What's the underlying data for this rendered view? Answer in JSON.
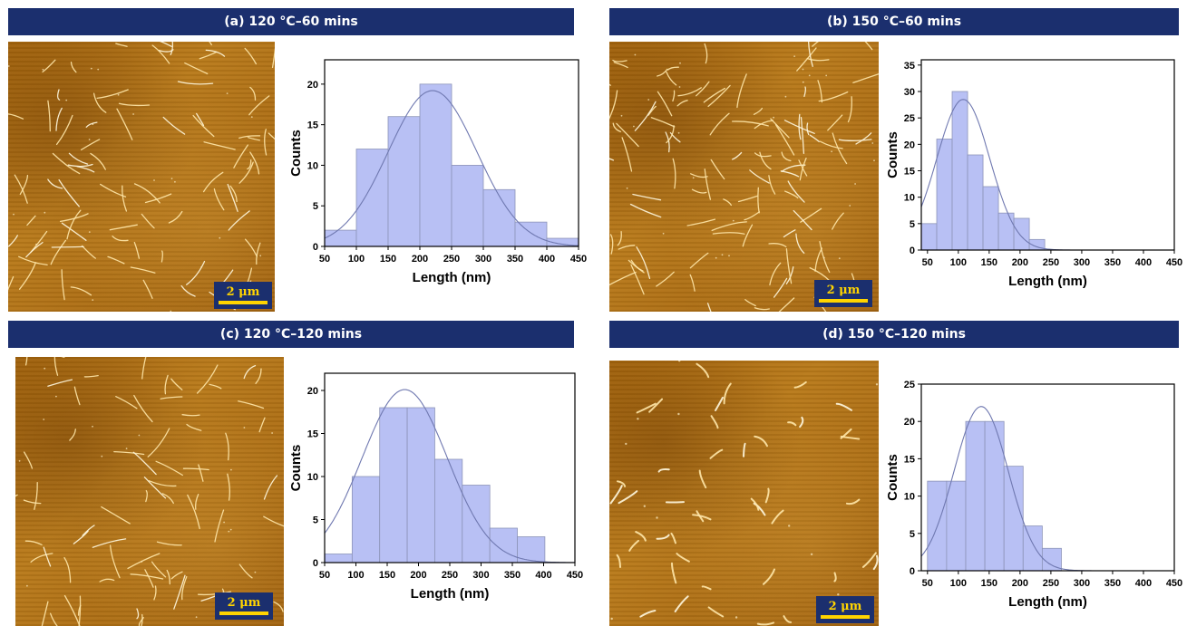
{
  "panels": [
    {
      "title": "(a) 120 °C–60 mins",
      "scale_label": "2 μm"
    },
    {
      "title": "(b) 150 °C–60 mins",
      "scale_label": "2 μm"
    },
    {
      "title": "(c) 120 °C–120 mins",
      "scale_label": "2 μm"
    },
    {
      "title": "(d) 150 °C–120 mins",
      "scale_label": "2 μm"
    }
  ],
  "colors": {
    "banner": "#1b2f6e",
    "scale_text": "#ffd400",
    "bar_fill": "#b8c0f4",
    "bar_stroke": "#8d94b8",
    "fit_line": "#6f78b0"
  },
  "chart_data": [
    {
      "type": "bar",
      "xlabel": "Length (nm)",
      "ylabel": "Counts",
      "xlim": [
        50,
        450
      ],
      "ylim": [
        0,
        23
      ],
      "xticks": [
        50,
        100,
        150,
        200,
        250,
        300,
        350,
        400,
        450
      ],
      "yticks": [
        0,
        5,
        10,
        15,
        20
      ],
      "bin_edges": [
        50,
        100,
        150,
        200,
        250,
        300,
        350,
        400,
        450
      ],
      "values": [
        2,
        12,
        16,
        20,
        10,
        7,
        3,
        1
      ],
      "fit": {
        "type": "gaussian",
        "mean": 220,
        "sigma": 70,
        "peak": 19.2
      }
    },
    {
      "type": "bar",
      "xlabel": "Length (nm)",
      "ylabel": "Counts",
      "xlim": [
        40,
        450
      ],
      "ylim": [
        0,
        36
      ],
      "xticks": [
        50,
        100,
        150,
        200,
        250,
        300,
        350,
        400,
        450
      ],
      "yticks": [
        0,
        5,
        10,
        15,
        20,
        25,
        30,
        35
      ],
      "bin_edges": [
        40,
        65,
        90,
        115,
        140,
        165,
        190,
        215,
        240,
        265
      ],
      "values": [
        5,
        21,
        30,
        18,
        12,
        7,
        6,
        2,
        0
      ],
      "fit": {
        "type": "gaussian",
        "mean": 108,
        "sigma": 43,
        "peak": 28.5
      }
    },
    {
      "type": "bar",
      "xlabel": "Length (nm)",
      "ylabel": "Counts",
      "xlim": [
        50,
        450
      ],
      "ylim": [
        0,
        22
      ],
      "xticks": [
        50,
        100,
        150,
        200,
        250,
        300,
        350,
        400,
        450
      ],
      "yticks": [
        0,
        5,
        10,
        15,
        20
      ],
      "bin_edges": [
        50,
        94,
        138,
        182,
        226,
        270,
        314,
        358,
        402
      ],
      "values": [
        1,
        10,
        18,
        18,
        12,
        9,
        4,
        3
      ],
      "fit": {
        "type": "gaussian",
        "mean": 178,
        "sigma": 68,
        "peak": 20.1
      }
    },
    {
      "type": "bar",
      "xlabel": "Length (nm)",
      "ylabel": "Counts",
      "xlim": [
        40,
        450
      ],
      "ylim": [
        0,
        25
      ],
      "xticks": [
        50,
        100,
        150,
        200,
        250,
        300,
        350,
        400,
        450
      ],
      "yticks": [
        0,
        5,
        10,
        15,
        20,
        25
      ],
      "bin_edges": [
        50,
        81,
        112,
        143,
        174,
        205,
        236,
        267
      ],
      "values": [
        12,
        12,
        20,
        20,
        14,
        6,
        3
      ],
      "fit": {
        "type": "gaussian",
        "mean": 137,
        "sigma": 44,
        "peak": 22
      }
    }
  ]
}
